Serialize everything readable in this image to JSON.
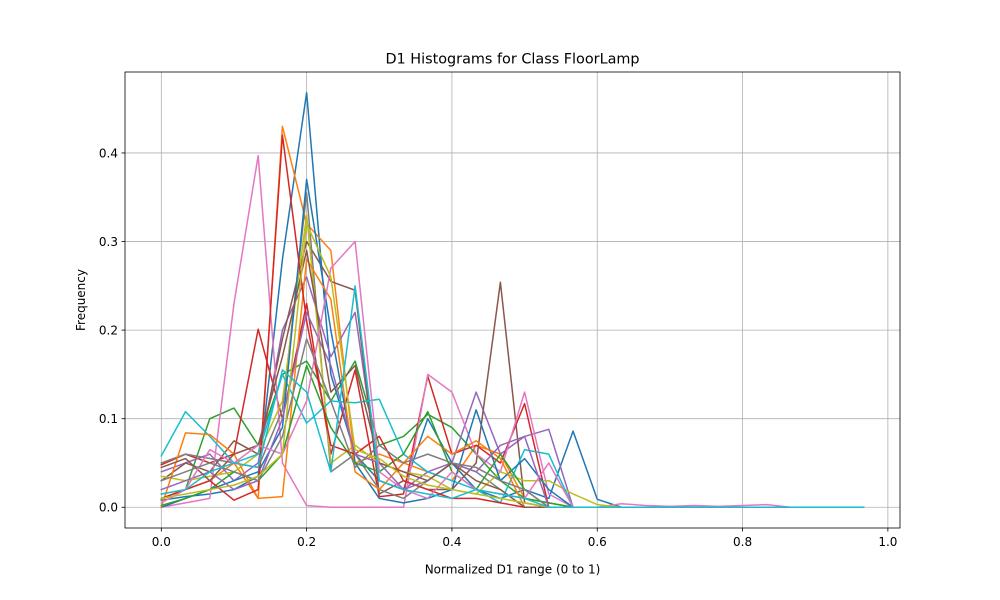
{
  "chart_data": {
    "type": "line",
    "title": "D1 Histograms for Class FloorLamp",
    "xlabel": "Normalized D1 range (0 to 1)",
    "ylabel": "Frequency",
    "xlim": [
      -0.05,
      1.0167
    ],
    "ylim": [
      -0.0234,
      0.4914
    ],
    "x_ticks": [
      0.0,
      0.2,
      0.4,
      0.6,
      0.8,
      1.0
    ],
    "x_tick_labels": [
      "0.0",
      "0.2",
      "0.4",
      "0.6",
      "0.8",
      "1.0"
    ],
    "y_ticks": [
      0.0,
      0.1,
      0.2,
      0.3,
      0.4
    ],
    "y_tick_labels": [
      "0.0",
      "0.1",
      "0.2",
      "0.3",
      "0.4"
    ],
    "grid": true,
    "legend": "none",
    "x": [
      0.0,
      0.0333,
      0.0667,
      0.1,
      0.1333,
      0.1667,
      0.2,
      0.2333,
      0.2667,
      0.3,
      0.3333,
      0.3667,
      0.4,
      0.4333,
      0.4667,
      0.5,
      0.5333,
      0.5667,
      0.6,
      0.6333,
      0.6667,
      0.7,
      0.7333,
      0.7667,
      0.8,
      0.8333,
      0.8667,
      0.9,
      0.9333,
      0.9667
    ],
    "series": [
      {
        "color": "#1f77b4",
        "values": [
          0.008,
          0.012,
          0.015,
          0.02,
          0.035,
          0.28,
          0.468,
          0.15,
          0.06,
          0.03,
          0.02,
          0.1,
          0.05,
          0.02,
          0.01,
          0.02,
          0.01,
          0.086,
          0.009,
          0.0,
          0.0,
          0.0,
          0.0,
          0.0,
          0.0,
          0.0,
          0.0,
          0.0,
          0.0,
          0.0
        ]
      },
      {
        "color": "#ff7f0e",
        "values": [
          0.015,
          0.02,
          0.03,
          0.05,
          0.01,
          0.43,
          0.32,
          0.29,
          0.05,
          0.06,
          0.05,
          0.04,
          0.03,
          0.07,
          0.06,
          0.01,
          0.005,
          0.0,
          0.0,
          0.0,
          0.0,
          0.0,
          0.0,
          0.0,
          0.0,
          0.0,
          0.0,
          0.0,
          0.0,
          0.0
        ]
      },
      {
        "color": "#2ca02c",
        "values": [
          0.01,
          0.02,
          0.1,
          0.112,
          0.07,
          0.15,
          0.165,
          0.12,
          0.165,
          0.07,
          0.08,
          0.105,
          0.09,
          0.06,
          0.03,
          0.01,
          0.005,
          0.0,
          0.0,
          0.0,
          0.0,
          0.0,
          0.0,
          0.0,
          0.0,
          0.0,
          0.0,
          0.0,
          0.0,
          0.0
        ]
      },
      {
        "color": "#d62728",
        "values": [
          0.048,
          0.06,
          0.05,
          0.06,
          0.201,
          0.1,
          0.23,
          0.06,
          0.155,
          0.012,
          0.015,
          0.148,
          0.06,
          0.07,
          0.05,
          0.117,
          0.0,
          0.0,
          0.0,
          0.0,
          0.0,
          0.0,
          0.0,
          0.0,
          0.0,
          0.0,
          0.0,
          0.0,
          0.0,
          0.0
        ]
      },
      {
        "color": "#9467bd",
        "values": [
          0.04,
          0.05,
          0.06,
          0.03,
          0.05,
          0.2,
          0.26,
          0.17,
          0.22,
          0.03,
          0.02,
          0.04,
          0.05,
          0.13,
          0.06,
          0.08,
          0.088,
          0.0,
          0.0,
          0.0,
          0.0,
          0.0,
          0.0,
          0.0,
          0.0,
          0.0,
          0.0,
          0.0,
          0.0,
          0.0
        ]
      },
      {
        "color": "#8c564b",
        "values": [
          0.03,
          0.05,
          0.04,
          0.075,
          0.06,
          0.19,
          0.3,
          0.255,
          0.245,
          0.015,
          0.03,
          0.02,
          0.02,
          0.05,
          0.254,
          0.005,
          0.0,
          0.0,
          0.0,
          0.0,
          0.0,
          0.0,
          0.0,
          0.0,
          0.0,
          0.0,
          0.0,
          0.0,
          0.0,
          0.0
        ]
      },
      {
        "color": "#e377c2",
        "values": [
          0.0,
          0.005,
          0.01,
          0.23,
          0.397,
          0.05,
          0.002,
          0.0,
          0.0,
          0.0,
          0.0,
          0.15,
          0.13,
          0.06,
          0.04,
          0.13,
          0.015,
          0.0,
          0.0,
          0.004,
          0.002,
          0.001,
          0.002,
          0.001,
          0.002,
          0.003,
          0.0,
          0.0,
          0.0,
          0.0
        ]
      },
      {
        "color": "#7f7f7f",
        "values": [
          0.05,
          0.06,
          0.055,
          0.05,
          0.045,
          0.11,
          0.355,
          0.04,
          0.06,
          0.02,
          0.01,
          0.03,
          0.05,
          0.04,
          0.02,
          0.0,
          0.0,
          0.0,
          0.0,
          0.0,
          0.0,
          0.0,
          0.0,
          0.0,
          0.0,
          0.0,
          0.0,
          0.0,
          0.0,
          0.0
        ]
      },
      {
        "color": "#bcbd22",
        "values": [
          0.035,
          0.03,
          0.035,
          0.04,
          0.06,
          0.12,
          0.33,
          0.05,
          0.07,
          0.05,
          0.04,
          0.035,
          0.02,
          0.015,
          0.04,
          0.03,
          0.03,
          0.015,
          0.003,
          0.0,
          0.0,
          0.0,
          0.0,
          0.0,
          0.0,
          0.0,
          0.0,
          0.0,
          0.0,
          0.0
        ]
      },
      {
        "color": "#17becf",
        "values": [
          0.058,
          0.108,
          0.08,
          0.05,
          0.06,
          0.15,
          0.095,
          0.12,
          0.118,
          0.122,
          0.06,
          0.04,
          0.03,
          0.02,
          0.005,
          0.065,
          0.06,
          0.0,
          0.0,
          0.0,
          0.0,
          0.0,
          0.0,
          0.0,
          0.0,
          0.0,
          0.0,
          0.0,
          0.0,
          0.0
        ]
      },
      {
        "color": "#1f77b4",
        "values": [
          0.0,
          0.01,
          0.02,
          0.03,
          0.04,
          0.09,
          0.37,
          0.2,
          0.05,
          0.01,
          0.005,
          0.01,
          0.02,
          0.11,
          0.03,
          0.055,
          0.02,
          0.0,
          0.0,
          0.0,
          0.0,
          0.0,
          0.0,
          0.0,
          0.0,
          0.0,
          0.0,
          0.0,
          0.0,
          0.0
        ]
      },
      {
        "color": "#ff7f0e",
        "values": [
          0.0,
          0.084,
          0.082,
          0.06,
          0.01,
          0.012,
          0.28,
          0.235,
          0.04,
          0.02,
          0.05,
          0.08,
          0.06,
          0.075,
          0.055,
          0.0,
          0.0,
          0.0,
          0.0,
          0.0,
          0.0,
          0.0,
          0.0,
          0.0,
          0.0,
          0.0,
          0.0,
          0.0,
          0.0,
          0.0
        ]
      },
      {
        "color": "#2ca02c",
        "values": [
          0.002,
          0.01,
          0.02,
          0.04,
          0.03,
          0.06,
          0.16,
          0.09,
          0.05,
          0.04,
          0.06,
          0.108,
          0.04,
          0.02,
          0.06,
          0.02,
          0.0,
          0.0,
          0.0,
          0.0,
          0.0,
          0.0,
          0.0,
          0.0,
          0.0,
          0.0,
          0.0,
          0.0,
          0.0,
          0.0
        ]
      },
      {
        "color": "#d62728",
        "values": [
          0.01,
          0.02,
          0.03,
          0.008,
          0.02,
          0.42,
          0.21,
          0.07,
          0.06,
          0.08,
          0.03,
          0.02,
          0.01,
          0.01,
          0.005,
          0.0,
          0.0,
          0.0,
          0.0,
          0.0,
          0.0,
          0.0,
          0.0,
          0.0,
          0.0,
          0.0,
          0.0,
          0.0,
          0.0,
          0.0
        ]
      },
      {
        "color": "#9467bd",
        "values": [
          0.02,
          0.03,
          0.04,
          0.02,
          0.03,
          0.1,
          0.22,
          0.16,
          0.06,
          0.05,
          0.02,
          0.03,
          0.05,
          0.04,
          0.07,
          0.08,
          0.0,
          0.0,
          0.0,
          0.0,
          0.0,
          0.0,
          0.0,
          0.0,
          0.0,
          0.0,
          0.0,
          0.0,
          0.0,
          0.0
        ]
      },
      {
        "color": "#8c564b",
        "values": [
          0.045,
          0.055,
          0.03,
          0.06,
          0.07,
          0.17,
          0.29,
          0.13,
          0.16,
          0.05,
          0.04,
          0.03,
          0.05,
          0.03,
          0.02,
          0.0,
          0.0,
          0.0,
          0.0,
          0.0,
          0.0,
          0.0,
          0.0,
          0.0,
          0.0,
          0.0,
          0.0,
          0.0,
          0.0,
          0.0
        ]
      },
      {
        "color": "#e377c2",
        "values": [
          0.005,
          0.02,
          0.065,
          0.05,
          0.07,
          0.06,
          0.12,
          0.27,
          0.3,
          0.04,
          0.02,
          0.01,
          0.04,
          0.02,
          0.015,
          0.01,
          0.05,
          0.0,
          0.0,
          0.0,
          0.0,
          0.0,
          0.0,
          0.0,
          0.0,
          0.0,
          0.0,
          0.0,
          0.0,
          0.0
        ]
      },
      {
        "color": "#7f7f7f",
        "values": [
          0.03,
          0.04,
          0.05,
          0.04,
          0.03,
          0.08,
          0.19,
          0.12,
          0.045,
          0.07,
          0.05,
          0.06,
          0.05,
          0.045,
          0.03,
          0.02,
          0.0,
          0.0,
          0.0,
          0.0,
          0.0,
          0.0,
          0.0,
          0.0,
          0.0,
          0.0,
          0.0,
          0.0,
          0.0,
          0.0
        ]
      },
      {
        "color": "#bcbd22",
        "values": [
          0.01,
          0.015,
          0.02,
          0.025,
          0.035,
          0.06,
          0.32,
          0.26,
          0.065,
          0.055,
          0.035,
          0.025,
          0.02,
          0.015,
          0.01,
          0.005,
          0.0,
          0.0,
          0.0,
          0.0,
          0.0,
          0.0,
          0.0,
          0.0,
          0.0,
          0.0,
          0.0,
          0.0,
          0.0,
          0.0
        ]
      },
      {
        "color": "#17becf",
        "values": [
          0.015,
          0.02,
          0.04,
          0.05,
          0.045,
          0.155,
          0.13,
          0.04,
          0.25,
          0.03,
          0.02,
          0.015,
          0.01,
          0.02,
          0.015,
          0.01,
          0.0,
          0.0,
          0.0,
          0.0,
          0.0,
          0.0,
          0.0,
          0.0,
          0.0,
          0.0,
          0.0,
          0.0,
          0.0,
          0.0
        ]
      }
    ]
  }
}
